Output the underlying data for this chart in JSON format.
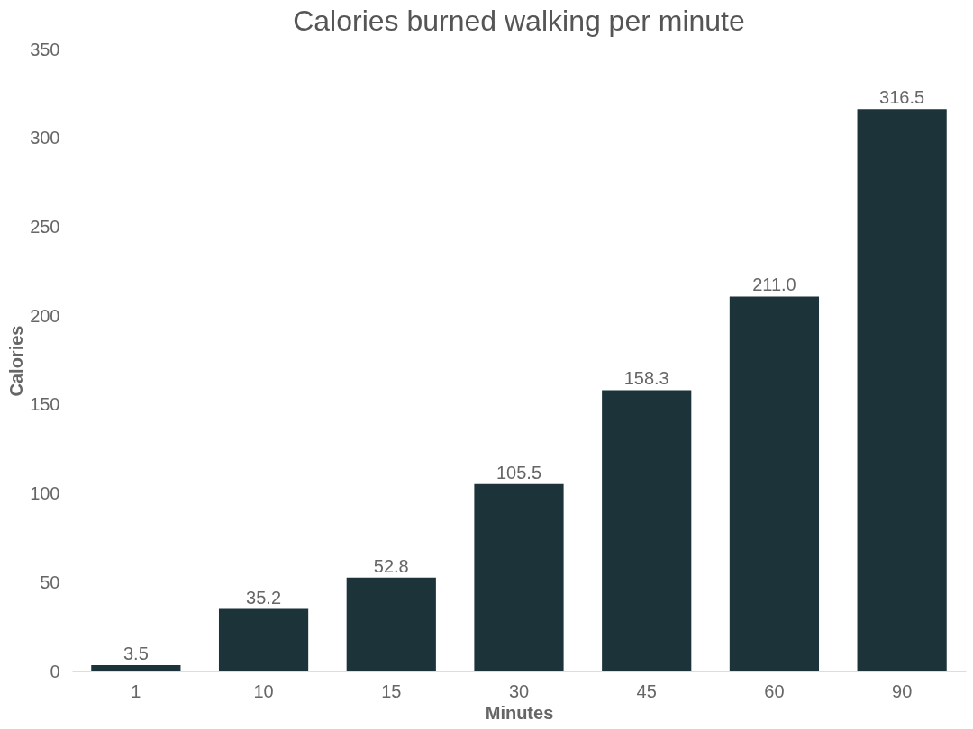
{
  "chart_data": {
    "type": "bar",
    "title": "Calories burned walking per minute",
    "xlabel": "Minutes",
    "ylabel": "Calories",
    "categories": [
      "1",
      "10",
      "15",
      "30",
      "45",
      "60",
      "90"
    ],
    "values": [
      3.5,
      35.2,
      52.8,
      105.5,
      158.3,
      211.0,
      316.5
    ],
    "value_labels": [
      "3.5",
      "35.2",
      "52.8",
      "105.5",
      "158.3",
      "211.0",
      "316.5"
    ],
    "color": "#1c3339",
    "ylim": [
      0,
      350
    ],
    "yticks": [
      0,
      50,
      100,
      150,
      200,
      250,
      300,
      350
    ],
    "grid": false
  }
}
